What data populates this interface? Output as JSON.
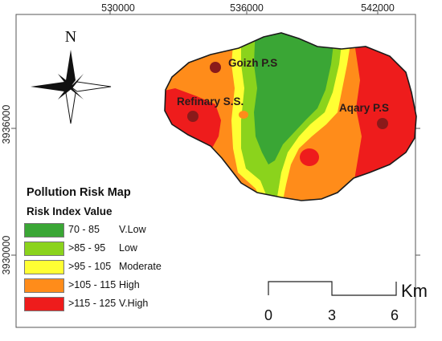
{
  "map": {
    "top_ticks": [
      "530000",
      "536000",
      "542000"
    ],
    "left_ticks": [
      "3936000",
      "3930000"
    ],
    "north_label": "N",
    "colors": {
      "v_low": "#3aa635",
      "low": "#8bd31c",
      "moderate": "#ffff33",
      "high": "#ff8c1a",
      "v_high": "#ee1c1c",
      "station": "#8a1a1a"
    },
    "stations": [
      {
        "label": "Goizh P.S"
      },
      {
        "label": "Refinary S.S."
      },
      {
        "label": "Aqary P.S"
      }
    ]
  },
  "legend": {
    "title": "Pollution Risk Map",
    "subtitle": "Risk Index Value",
    "items": [
      {
        "range": "70 - 85",
        "class": "V.Low",
        "color": "#3aa635"
      },
      {
        "range": ">85 - 95",
        "class": "Low",
        "color": "#8bd31c"
      },
      {
        "range": ">95 - 105",
        "class": "Moderate",
        "color": "#ffff33"
      },
      {
        "range": ">105 - 115",
        "class": "High",
        "color": "#ff8c1a"
      },
      {
        "range": ">115 - 125",
        "class": "V.High",
        "color": "#ee1c1c"
      }
    ]
  },
  "scalebar": {
    "labels": [
      "0",
      "3",
      "6"
    ],
    "unit": "Km"
  }
}
